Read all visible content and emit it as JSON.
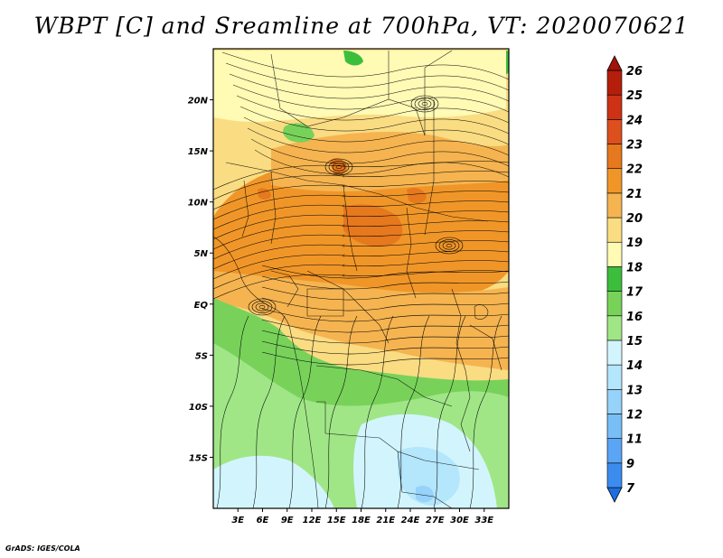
{
  "title": "WBPT [C] and Sreamline at 700hPa, VT: 2020070621",
  "credit": "GrADS: IGES/COLA",
  "map": {
    "lon_range": [
      0,
      36
    ],
    "lat_range": [
      -20,
      25
    ],
    "lat_ticks": [
      {
        "value": 20,
        "label": "20N"
      },
      {
        "value": 15,
        "label": "15N"
      },
      {
        "value": 10,
        "label": "10N"
      },
      {
        "value": 5,
        "label": "5N"
      },
      {
        "value": 0,
        "label": "EQ"
      },
      {
        "value": -5,
        "label": "5S"
      },
      {
        "value": -10,
        "label": "10S"
      },
      {
        "value": -15,
        "label": "15S"
      }
    ],
    "lon_ticks": [
      {
        "value": 3,
        "label": "3E"
      },
      {
        "value": 6,
        "label": "6E"
      },
      {
        "value": 9,
        "label": "9E"
      },
      {
        "value": 12,
        "label": "12E"
      },
      {
        "value": 15,
        "label": "15E"
      },
      {
        "value": 18,
        "label": "18E"
      },
      {
        "value": 21,
        "label": "21E"
      },
      {
        "value": 24,
        "label": "24E"
      },
      {
        "value": 27,
        "label": "27E"
      },
      {
        "value": 30,
        "label": "30E"
      },
      {
        "value": 33,
        "label": "33E"
      }
    ]
  },
  "colorbar": {
    "levels": [
      "7",
      "9",
      "11",
      "12",
      "13",
      "14",
      "15",
      "16",
      "17",
      "18",
      "19",
      "20",
      "21",
      "22",
      "23",
      "24",
      "25",
      "26"
    ],
    "colors": [
      "#1e6ee0",
      "#3c8cf0",
      "#5aa5f5",
      "#78bef7",
      "#96d2fa",
      "#b4e6fc",
      "#d2f5fd",
      "#a0e687",
      "#78d25a",
      "#3cbe3c",
      "#fffab4",
      "#fadc82",
      "#f5b450",
      "#f09628",
      "#e6781e",
      "#dc501e",
      "#cd3214",
      "#b41e0a",
      "#a0140a"
    ]
  },
  "map_colors": {
    "orange_dark": "#e6781e",
    "orange": "#f09628",
    "light_orange": "#f5b450",
    "tan": "#fadc82",
    "pale_yellow": "#fffab4",
    "green_dark": "#3cbe3c",
    "green": "#78d25a",
    "green_light": "#a0e687",
    "very_light": "#d2f5fd",
    "light_blue": "#b4e6fc",
    "blue": "#96d2fa"
  }
}
